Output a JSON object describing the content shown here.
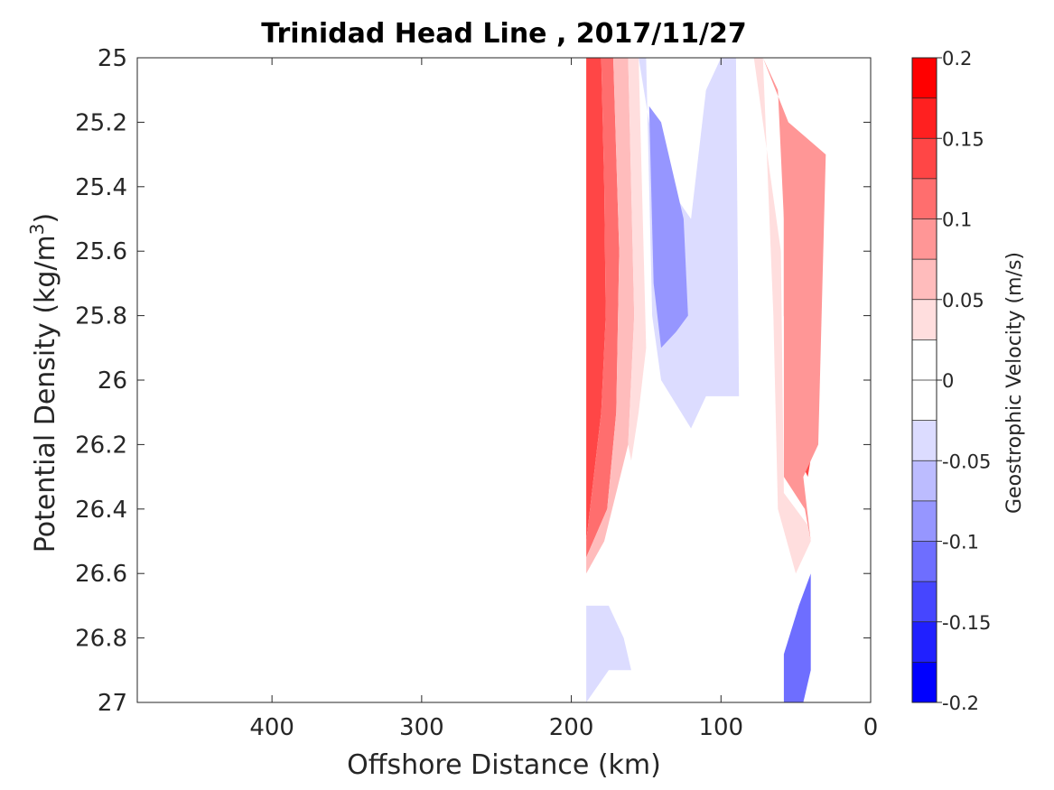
{
  "chart_data": {
    "type": "contour",
    "title": "Trinidad Head Line , 2017/11/27",
    "xlabel": "Offshore Distance (km)",
    "ylabel": "Potential Density (kg/m3)",
    "ylabel_base": "Potential Density (kg/m",
    "ylabel_sup": "3",
    "ylabel_close": ")",
    "xlim": [
      490,
      0
    ],
    "x_reversed": true,
    "xticks": [
      400,
      300,
      200,
      100,
      0
    ],
    "ylim": [
      25,
      27
    ],
    "y_reversed": true,
    "yticks": [
      25,
      25.2,
      25.4,
      25.6,
      25.8,
      26,
      26.2,
      26.4,
      26.6,
      26.8,
      27
    ],
    "colorbar": {
      "label": "Geostrophic Velocity (m/s)",
      "range": [
        -0.2,
        0.2
      ],
      "step": 0.025,
      "ticks": [
        0.2,
        0.15,
        0.1,
        0.05,
        0,
        -0.05,
        -0.1,
        -0.15,
        -0.2
      ],
      "tick_labels": [
        "0.2",
        "0.15",
        "0.1",
        "0.05",
        "0",
        "-0.05",
        "-0.1",
        "-0.15",
        "-0.2"
      ],
      "colors": [
        "#ff0000",
        "#ff2020",
        "#ff4646",
        "#ff6e6e",
        "#ff9696",
        "#ffbcbc",
        "#ffdede",
        "#ffffff",
        "#ffffff",
        "#dcdcff",
        "#bcbcff",
        "#9696ff",
        "#6e6eff",
        "#4646ff",
        "#2020ff",
        "#0000ff"
      ]
    },
    "regions": [
      {
        "name": "offshore-red-core",
        "level": 0.175,
        "color": "#ff4646",
        "points": [
          [
            190,
            25
          ],
          [
            180,
            25
          ],
          [
            178,
            25.4
          ],
          [
            177,
            25.8
          ],
          [
            180,
            26.1
          ],
          [
            185,
            26.3
          ],
          [
            190,
            26.5
          ]
        ]
      },
      {
        "name": "offshore-red-mid",
        "level": 0.125,
        "color": "#ff6e6e",
        "points": [
          [
            180,
            25
          ],
          [
            172,
            25
          ],
          [
            168,
            25.6
          ],
          [
            170,
            26.1
          ],
          [
            176,
            26.4
          ],
          [
            190,
            26.55
          ],
          [
            190,
            26.5
          ],
          [
            185,
            26.3
          ],
          [
            180,
            26.1
          ],
          [
            177,
            25.8
          ],
          [
            178,
            25.4
          ]
        ]
      },
      {
        "name": "offshore-red-outer",
        "level": 0.075,
        "color": "#ffbcbc",
        "points": [
          [
            172,
            25
          ],
          [
            162,
            25
          ],
          [
            158,
            25.8
          ],
          [
            162,
            26.2
          ],
          [
            178,
            26.5
          ],
          [
            190,
            26.6
          ],
          [
            190,
            26.55
          ],
          [
            176,
            26.4
          ],
          [
            170,
            26.1
          ],
          [
            168,
            25.6
          ]
        ]
      },
      {
        "name": "offshore-red-edge",
        "level": 0.025,
        "color": "#ffdede",
        "points": [
          [
            162,
            25
          ],
          [
            155,
            25
          ],
          [
            150,
            25.9
          ],
          [
            155,
            26.1
          ],
          [
            160,
            26.25
          ],
          [
            162,
            26.2
          ],
          [
            158,
            25.8
          ]
        ]
      },
      {
        "name": "mid-blue-outer",
        "level": -0.025,
        "color": "#dcdcff",
        "points": [
          [
            155,
            25
          ],
          [
            150,
            25
          ],
          [
            146,
            25.8
          ],
          [
            140,
            26.0
          ],
          [
            120,
            26.15
          ],
          [
            110,
            26.05
          ],
          [
            88,
            26.05
          ],
          [
            90,
            25
          ],
          [
            100,
            25
          ],
          [
            110,
            25.1
          ],
          [
            120,
            25.5
          ],
          [
            135,
            25.4
          ],
          [
            148,
            25.2
          ]
        ]
      },
      {
        "name": "mid-blue-core",
        "level": -0.075,
        "color": "#9696ff",
        "points": [
          [
            148,
            25.15
          ],
          [
            140,
            25.2
          ],
          [
            130,
            25.4
          ],
          [
            125,
            25.5
          ],
          [
            122,
            25.8
          ],
          [
            130,
            25.85
          ],
          [
            140,
            25.9
          ],
          [
            145,
            25.7
          ]
        ]
      },
      {
        "name": "nearshore-red-core",
        "level": 0.175,
        "color": "#ff2020",
        "points": [
          [
            50,
            25.6
          ],
          [
            45,
            25.4
          ],
          [
            38,
            25.5
          ],
          [
            38,
            26.0
          ],
          [
            44,
            26.0
          ],
          [
            50,
            25.9
          ]
        ]
      },
      {
        "name": "nearshore-red-mid",
        "level": 0.125,
        "color": "#ff4646",
        "points": [
          [
            58,
            25.3
          ],
          [
            42,
            25.3
          ],
          [
            35,
            25.4
          ],
          [
            35,
            26.1
          ],
          [
            42,
            26.3
          ],
          [
            52,
            26.2
          ],
          [
            58,
            25.8
          ]
        ]
      },
      {
        "name": "nearshore-red-outer",
        "level": 0.075,
        "color": "#ff9696",
        "points": [
          [
            72,
            25
          ],
          [
            62,
            25.1
          ],
          [
            58,
            25.5
          ],
          [
            58,
            26.3
          ],
          [
            44,
            26.4
          ],
          [
            40,
            26.5
          ],
          [
            45,
            26.3
          ],
          [
            35,
            26.2
          ],
          [
            30,
            25.3
          ],
          [
            55,
            25.2
          ]
        ]
      },
      {
        "name": "nearshore-red-edge",
        "level": 0.025,
        "color": "#ffdede",
        "points": [
          [
            78,
            25
          ],
          [
            72,
            25
          ],
          [
            65,
            25.8
          ],
          [
            62,
            26.4
          ],
          [
            50,
            26.6
          ],
          [
            40,
            26.5
          ],
          [
            42,
            26.45
          ],
          [
            58,
            26.35
          ],
          [
            60,
            25.6
          ]
        ]
      },
      {
        "name": "deep-blue-offshore",
        "level": -0.025,
        "color": "#dcdcff",
        "points": [
          [
            190,
            26.7
          ],
          [
            175,
            26.7
          ],
          [
            165,
            26.8
          ],
          [
            160,
            26.9
          ],
          [
            175,
            26.9
          ],
          [
            190,
            27
          ]
        ]
      },
      {
        "name": "deep-blue-nearshore",
        "level": -0.075,
        "color": "#6e6eff",
        "points": [
          [
            40,
            26.6
          ],
          [
            48,
            26.7
          ],
          [
            58,
            26.85
          ],
          [
            58,
            27
          ],
          [
            45,
            27
          ],
          [
            40,
            26.9
          ]
        ]
      }
    ]
  }
}
